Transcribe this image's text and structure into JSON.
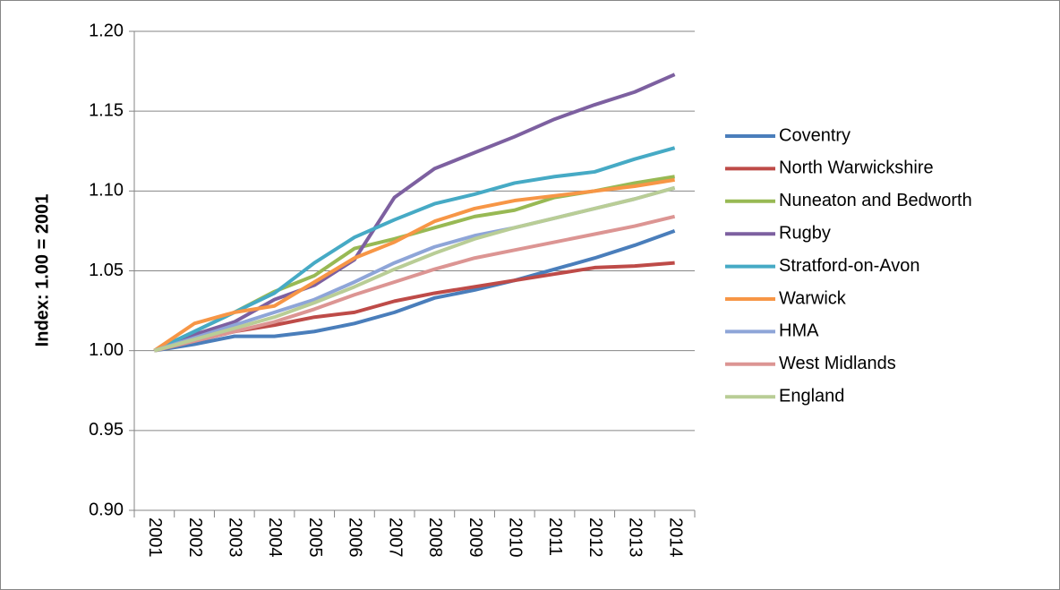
{
  "chart_data": {
    "type": "line",
    "ylabel": "Index: 1.00 = 2001",
    "categories": [
      "2001",
      "2002",
      "2003",
      "2004",
      "2005",
      "2006",
      "2007",
      "2008",
      "2009",
      "2010",
      "2011",
      "2012",
      "2013",
      "2014"
    ],
    "ylim": [
      0.9,
      1.2
    ],
    "yticks": [
      {
        "value": 0.9,
        "label": "0.90"
      },
      0.95,
      {
        "value": 1.0,
        "label": "1.00"
      },
      1.05,
      {
        "value": 1.1,
        "label": "1.10"
      },
      1.15,
      {
        "value": 1.2,
        "label": "1.20"
      }
    ],
    "grid": true,
    "legend": "right",
    "series": [
      {
        "name": "Coventry",
        "color": "#4a7ebb",
        "values": [
          1.0,
          1.004,
          1.009,
          1.009,
          1.012,
          1.017,
          1.024,
          1.033,
          1.038,
          1.044,
          1.051,
          1.058,
          1.066,
          1.075
        ]
      },
      {
        "name": "North Warwickshire",
        "color": "#be4b48",
        "values": [
          1.0,
          1.006,
          1.012,
          1.016,
          1.021,
          1.024,
          1.031,
          1.036,
          1.04,
          1.044,
          1.048,
          1.052,
          1.053,
          1.055
        ]
      },
      {
        "name": "Nuneaton and Bedworth",
        "color": "#98b954",
        "values": [
          1.0,
          1.012,
          1.024,
          1.037,
          1.047,
          1.064,
          1.07,
          1.077,
          1.084,
          1.088,
          1.096,
          1.1,
          1.105,
          1.109
        ]
      },
      {
        "name": "Rugby",
        "color": "#7d60a0",
        "values": [
          1.0,
          1.01,
          1.018,
          1.032,
          1.041,
          1.057,
          1.096,
          1.114,
          1.124,
          1.134,
          1.145,
          1.154,
          1.162,
          1.173
        ]
      },
      {
        "name": "Stratford-on-Avon",
        "color": "#46aac5",
        "values": [
          1.0,
          1.012,
          1.024,
          1.036,
          1.055,
          1.071,
          1.082,
          1.092,
          1.098,
          1.105,
          1.109,
          1.112,
          1.12,
          1.127
        ]
      },
      {
        "name": "Warwick",
        "color": "#f79646",
        "values": [
          1.0,
          1.017,
          1.024,
          1.028,
          1.043,
          1.058,
          1.068,
          1.081,
          1.089,
          1.094,
          1.097,
          1.1,
          1.103,
          1.107
        ]
      },
      {
        "name": "HMA",
        "color": "#8ea5d8",
        "values": [
          1.0,
          1.008,
          1.016,
          1.024,
          1.032,
          1.043,
          1.055,
          1.065,
          1.072,
          1.077,
          1.083,
          1.089,
          1.095,
          1.102
        ]
      },
      {
        "name": "West Midlands",
        "color": "#dc9593",
        "values": [
          1.0,
          1.006,
          1.012,
          1.018,
          1.026,
          1.035,
          1.043,
          1.051,
          1.058,
          1.063,
          1.068,
          1.073,
          1.078,
          1.084
        ]
      },
      {
        "name": "England",
        "color": "#b9cd96",
        "values": [
          1.0,
          1.007,
          1.014,
          1.021,
          1.03,
          1.04,
          1.051,
          1.061,
          1.07,
          1.077,
          1.083,
          1.089,
          1.095,
          1.102
        ]
      }
    ]
  }
}
